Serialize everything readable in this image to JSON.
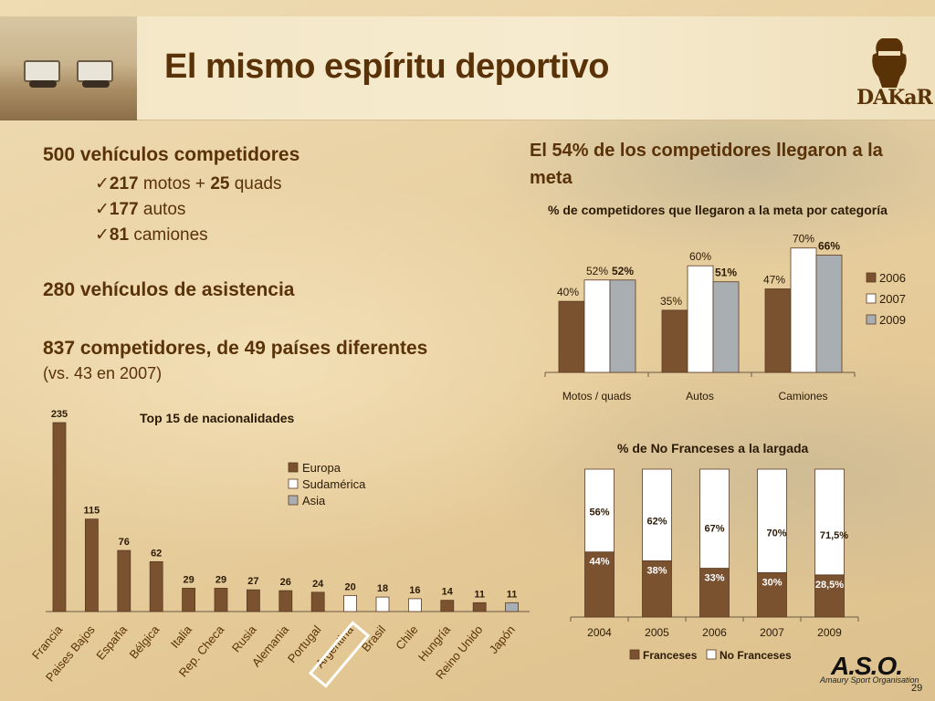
{
  "header": {
    "title": "El mismo espíritu deportivo",
    "logo_text": "DAKaR"
  },
  "left": {
    "vehicles_heading": "500 vehículos competidores",
    "vehicles_items": [
      {
        "num": "217",
        "text": "motos +",
        "num2": "25",
        "text2": "quads"
      },
      {
        "num": "177",
        "text": "autos"
      },
      {
        "num": "81",
        "text": "camiones"
      }
    ],
    "assist_heading": "280 vehículos de asistencia",
    "competitors_heading": "837 competidores, de 49 países diferentes",
    "competitors_note": "(vs. 43 en 2007)",
    "check_glyph": "✓"
  },
  "right": {
    "heading": "El 54% de los competidores llegaron a la meta"
  },
  "chart_data": [
    {
      "type": "bar",
      "title": "Top 15 de nacionalidades",
      "categories": [
        "Francia",
        "Paises Bajos",
        "España",
        "Bélgica",
        "Italia",
        "Rep. Checa",
        "Rusia",
        "Alemania",
        "Portugal",
        "Argentina",
        "Brasil",
        "Chile",
        "Hungría",
        "Reino Unido",
        "Japón"
      ],
      "values": [
        235,
        115,
        76,
        62,
        29,
        29,
        27,
        26,
        24,
        20,
        18,
        16,
        14,
        11,
        11
      ],
      "groups": [
        "Europa",
        "Europa",
        "Europa",
        "Europa",
        "Europa",
        "Europa",
        "Europa",
        "Europa",
        "Europa",
        "Sudamérica",
        "Sudamérica",
        "Sudamérica",
        "Europa",
        "Europa",
        "Asia"
      ],
      "legend": [
        {
          "name": "Europa",
          "color": "#7a5230"
        },
        {
          "name": "Sudamérica",
          "color": "#ffffff"
        },
        {
          "name": "Asia",
          "color": "#a9aeb3"
        }
      ],
      "highlighted_category": "Argentina",
      "ylim": [
        0,
        235
      ]
    },
    {
      "type": "bar",
      "title": "% de competidores que llegaron a la meta por categoría",
      "categories": [
        "Motos / quads",
        "Autos",
        "Camiones"
      ],
      "series": [
        {
          "name": "2006",
          "values": [
            40,
            35,
            47
          ],
          "labels": [
            "40%",
            "35%",
            "47%"
          ],
          "color": "#7a5230"
        },
        {
          "name": "2007",
          "values": [
            52,
            60,
            70
          ],
          "labels": [
            "52%",
            "60%",
            "70%"
          ],
          "color": "#ffffff"
        },
        {
          "name": "2009",
          "values": [
            52,
            51,
            66
          ],
          "labels": [
            "52%",
            "51%",
            "66%"
          ],
          "color": "#a9aeb3"
        }
      ],
      "legend_position": "right",
      "ylim": [
        0,
        75
      ]
    },
    {
      "type": "bar",
      "stacked": true,
      "title": "% de No Franceses a la largada",
      "categories": [
        "2004",
        "2005",
        "2006",
        "2007",
        "2009"
      ],
      "series": [
        {
          "name": "Franceses",
          "values": [
            44,
            38,
            33,
            30,
            28.5
          ],
          "labels": [
            "44%",
            "38%",
            "33%",
            "30%",
            "28,5%"
          ],
          "color": "#7a5230"
        },
        {
          "name": "No Franceses",
          "values": [
            56,
            62,
            67,
            70,
            71.5
          ],
          "labels": [
            "56%",
            "62%",
            "67%",
            "70%",
            "71,5%"
          ],
          "color": "#ffffff"
        }
      ],
      "legend_position": "bottom",
      "ylim": [
        0,
        100
      ]
    }
  ],
  "footer": {
    "aso_logo": "A.S.O.",
    "aso_sub": "Amaury Sport Organisation",
    "page_number": "29"
  }
}
